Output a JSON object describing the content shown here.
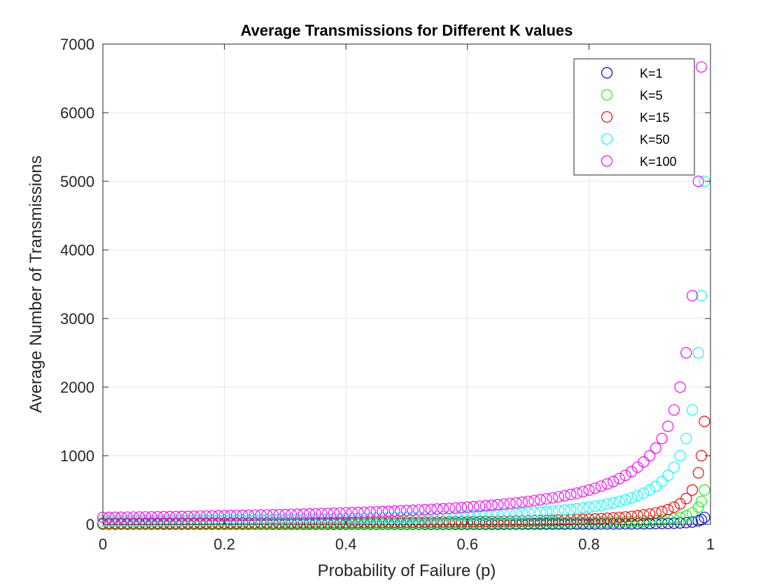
{
  "chart_data": {
    "type": "scatter",
    "title": "Average Transmissions for Different K values",
    "xlabel": "Probability of Failure (p)",
    "ylabel": "Average Number of Transmissions",
    "xlim": [
      0,
      1
    ],
    "ylim": [
      0,
      7000
    ],
    "xticks": [
      "0",
      "0.2",
      "0.4",
      "0.6",
      "0.8",
      "1"
    ],
    "yticks": [
      "0",
      "1000",
      "2000",
      "3000",
      "4000",
      "5000",
      "6000",
      "7000"
    ],
    "grid": true,
    "legend_position": "top-right",
    "marker": "open-circle",
    "formula": "y = K / (1 - p)",
    "x": [
      0,
      0.01,
      0.02,
      0.03,
      0.04,
      0.05,
      0.06,
      0.07,
      0.08,
      0.09,
      0.1,
      0.11,
      0.12,
      0.13,
      0.14,
      0.15,
      0.16,
      0.17,
      0.18,
      0.19,
      0.2,
      0.21,
      0.22,
      0.23,
      0.24,
      0.25,
      0.26,
      0.27,
      0.28,
      0.29,
      0.3,
      0.31,
      0.32,
      0.33,
      0.34,
      0.35,
      0.36,
      0.37,
      0.38,
      0.39,
      0.4,
      0.41,
      0.42,
      0.43,
      0.44,
      0.45,
      0.46,
      0.47,
      0.48,
      0.49,
      0.5,
      0.51,
      0.52,
      0.53,
      0.54,
      0.55,
      0.56,
      0.57,
      0.58,
      0.59,
      0.6,
      0.61,
      0.62,
      0.63,
      0.64,
      0.65,
      0.66,
      0.67,
      0.68,
      0.69,
      0.7,
      0.71,
      0.72,
      0.73,
      0.74,
      0.75,
      0.76,
      0.77,
      0.78,
      0.79,
      0.8,
      0.81,
      0.82,
      0.83,
      0.84,
      0.85,
      0.86,
      0.87,
      0.88,
      0.89,
      0.9,
      0.91,
      0.92,
      0.93,
      0.94,
      0.95,
      0.96,
      0.97,
      0.98,
      0.985,
      0.99
    ],
    "series": [
      {
        "name": "K=1",
        "K": 1,
        "color": "#0000ff"
      },
      {
        "name": "K=5",
        "K": 5,
        "color": "#00ff00"
      },
      {
        "name": "K=15",
        "K": 15,
        "color": "#ff0000"
      },
      {
        "name": "K=50",
        "K": 50,
        "color": "#00ffff"
      },
      {
        "name": "K=100",
        "K": 100,
        "color": "#ff00ff"
      }
    ]
  }
}
